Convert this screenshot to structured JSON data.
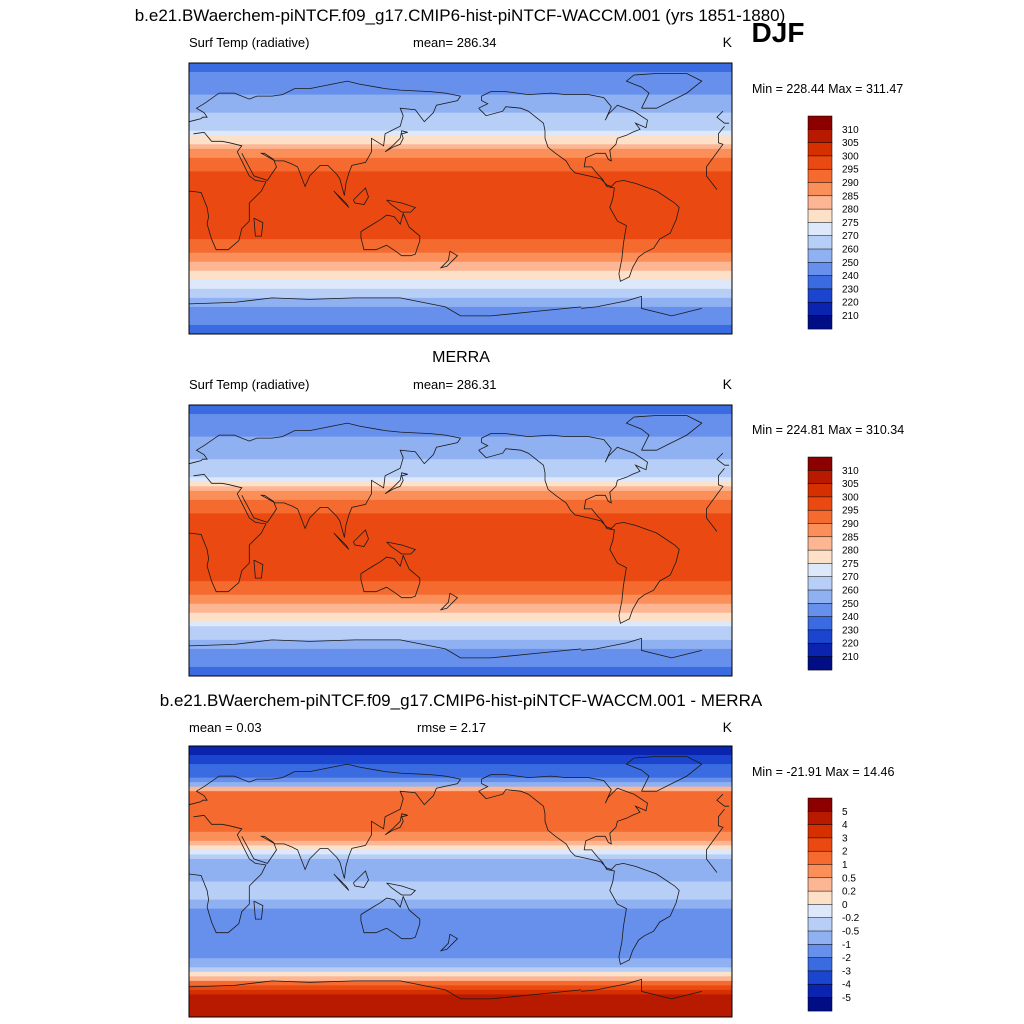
{
  "figure": {
    "season": "DJF",
    "main_title": "b.e21.BWaerchem-piNTCF.f09_g17.CMIP6-hist-piNTCF-WACCM.001 (yrs 1851-1880)"
  },
  "chart_data": [
    {
      "type": "heatmap",
      "panel": "model",
      "title": "",
      "left_label": "Surf Temp (radiative)",
      "center_label": "mean= 286.34",
      "units": "K",
      "minmax_label": "Min = 228.44 Max = 311.47",
      "min": 228.44,
      "max": 311.47,
      "mean": 286.34,
      "projection": "cylindrical equidistant, centered on 180",
      "colorbar": {
        "labels": [
          "310",
          "305",
          "300",
          "295",
          "290",
          "285",
          "280",
          "275",
          "270",
          "260",
          "250",
          "240",
          "230",
          "220",
          "210"
        ],
        "colors": [
          "#8c0000",
          "#b81a00",
          "#d73000",
          "#ea4a12",
          "#f56a2e",
          "#fb8f5a",
          "#fcb694",
          "#fde0c8",
          "#dde9fb",
          "#b7cff7",
          "#8fb0f1",
          "#6690ec",
          "#3a6be0",
          "#1c45cf",
          "#0a24b0",
          "#000d84"
        ]
      },
      "profile": {
        "lat": [
          90,
          75,
          60,
          45,
          30,
          15,
          0,
          -15,
          -30,
          -45,
          -55,
          -65,
          -75,
          -90
        ],
        "value": [
          236,
          246,
          258,
          270,
          287,
          298,
          300,
          299,
          294,
          282,
          274,
          264,
          247,
          236
        ]
      }
    },
    {
      "type": "heatmap",
      "panel": "obs",
      "title": "MERRA",
      "left_label": "Surf Temp (radiative)",
      "center_label": "mean= 286.31",
      "units": "K",
      "minmax_label": "Min = 224.81 Max = 310.34",
      "min": 224.81,
      "max": 310.34,
      "mean": 286.31,
      "projection": "cylindrical equidistant, centered on 180",
      "colorbar": {
        "labels": [
          "310",
          "305",
          "300",
          "295",
          "290",
          "285",
          "280",
          "275",
          "270",
          "260",
          "250",
          "240",
          "230",
          "220",
          "210"
        ],
        "colors": [
          "#8c0000",
          "#b81a00",
          "#d73000",
          "#ea4a12",
          "#f56a2e",
          "#fb8f5a",
          "#fcb694",
          "#fde0c8",
          "#dde9fb",
          "#b7cff7",
          "#8fb0f1",
          "#6690ec",
          "#3a6be0",
          "#1c45cf",
          "#0a24b0",
          "#000d84"
        ]
      },
      "profile": {
        "lat": [
          90,
          75,
          60,
          45,
          30,
          15,
          0,
          -15,
          -30,
          -45,
          -55,
          -65,
          -75,
          -90
        ],
        "value": [
          236,
          245,
          256,
          268,
          287,
          298,
          300,
          299,
          294,
          282,
          273,
          263,
          246,
          236
        ]
      }
    },
    {
      "type": "heatmap",
      "panel": "diff",
      "title": "b.e21.BWaerchem-piNTCF.f09_g17.CMIP6-hist-piNTCF-WACCM.001 - MERRA",
      "left_label": "mean =   0.03",
      "center_label": "rmse =   2.17",
      "units": "K",
      "minmax_label": "Min = -21.91 Max =  14.46",
      "min": -21.91,
      "max": 14.46,
      "mean": 0.03,
      "rmse": 2.17,
      "projection": "cylindrical equidistant, centered on 180",
      "colorbar": {
        "labels": [
          "5",
          "4",
          "3",
          "2",
          "1",
          "0.5",
          "0.2",
          "0",
          "-0.2",
          "-0.5",
          "-1",
          "-2",
          "-3",
          "-4",
          "-5"
        ],
        "colors": [
          "#8c0000",
          "#b81a00",
          "#d73000",
          "#ea4a12",
          "#f56a2e",
          "#fb8f5a",
          "#fcb694",
          "#fde0c8",
          "#dde9fb",
          "#b7cff7",
          "#8fb0f1",
          "#6690ec",
          "#3a6be0",
          "#1c45cf",
          "#0a24b0",
          "#000d84"
        ]
      },
      "profile": {
        "lat": [
          90,
          70,
          55,
          40,
          25,
          10,
          0,
          -10,
          -25,
          -40,
          -55,
          -65,
          -75,
          -90
        ],
        "value": [
          -5,
          -2,
          2,
          1.5,
          0.3,
          -1,
          -0.5,
          -0.2,
          -1.5,
          -2,
          -0.8,
          0.5,
          4,
          5
        ]
      }
    }
  ]
}
